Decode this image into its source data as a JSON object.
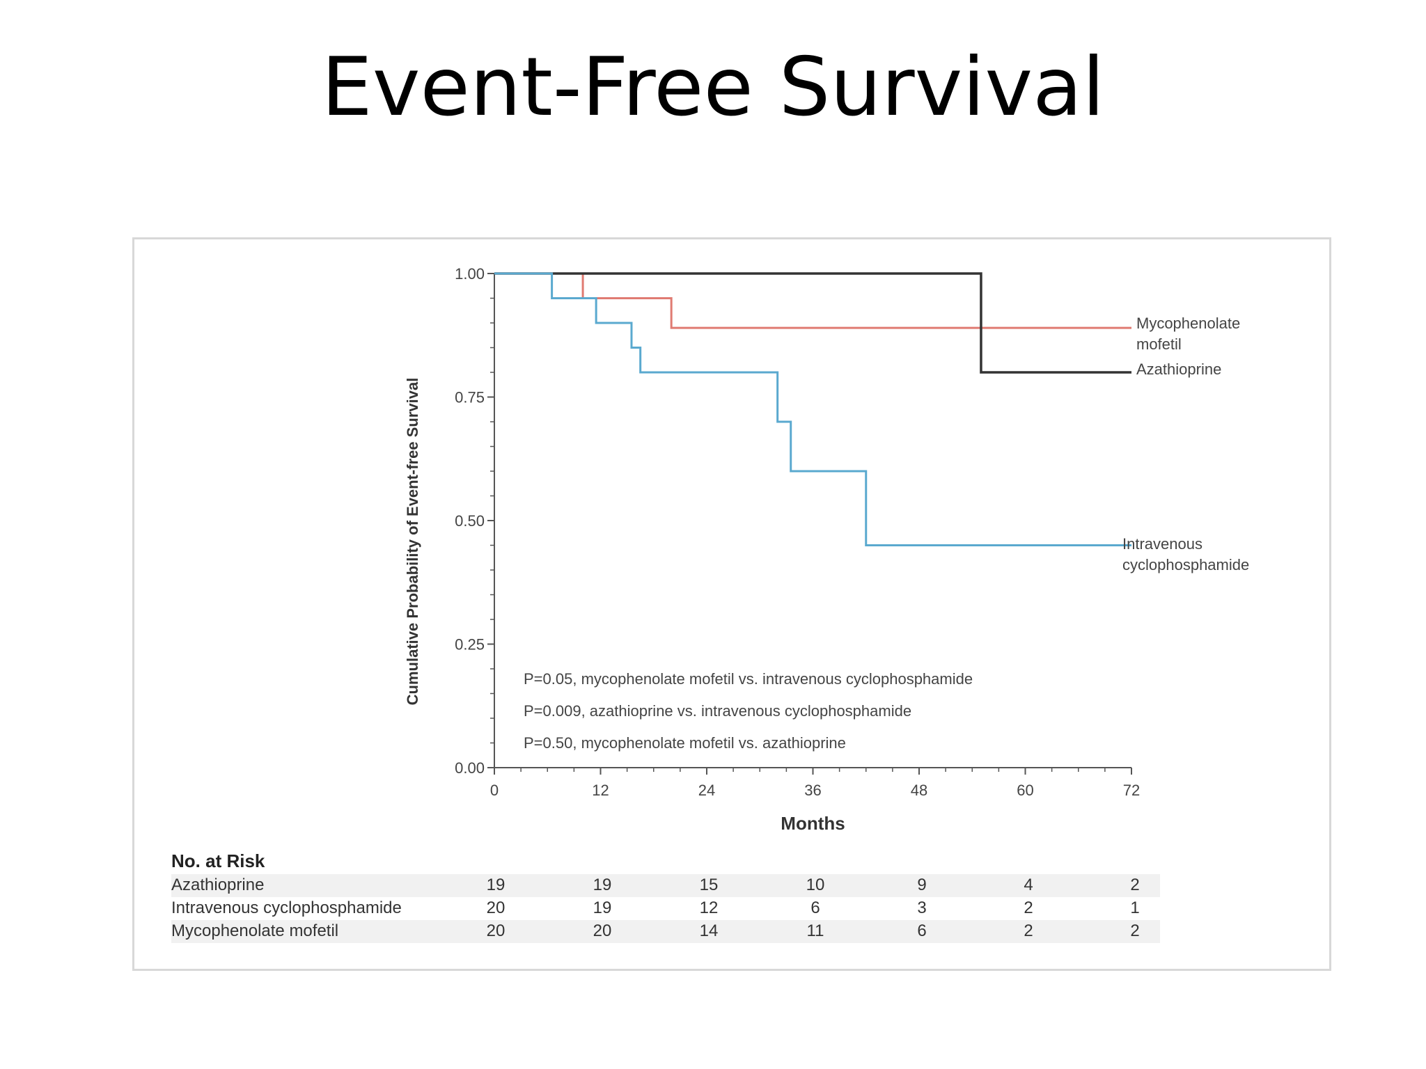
{
  "slide": {
    "title": "Event-Free Survival"
  },
  "colors": {
    "azathioprine": "#333333",
    "cyclophosphamide": "#5aa9cf",
    "mycophenolate": "#e07b72",
    "axis": "#555555",
    "frame": "#d8d8d8"
  },
  "chart_data": {
    "type": "line",
    "step": true,
    "title": "",
    "xlabel": "Months",
    "ylabel": "Cumulative Probability of Event-free Survival",
    "xlim": [
      0,
      72
    ],
    "ylim": [
      0,
      1
    ],
    "x_ticks": [
      "0",
      "12",
      "24",
      "36",
      "48",
      "60",
      "72"
    ],
    "y_ticks": [
      "0.00",
      "0.25",
      "0.50",
      "0.75",
      "1.00"
    ],
    "grid": false,
    "series": [
      {
        "name": "Mycophenolate mofetil",
        "label_lines": [
          "Mycophenolate",
          "mofetil"
        ],
        "color": "#e07b72",
        "x": [
          0,
          10,
          20,
          72
        ],
        "y": [
          1.0,
          0.95,
          0.89,
          0.89
        ]
      },
      {
        "name": "Azathioprine",
        "label_lines": [
          "Azathioprine"
        ],
        "color": "#333333",
        "x": [
          0,
          55,
          72
        ],
        "y": [
          1.0,
          0.8,
          0.8
        ]
      },
      {
        "name": "Intravenous cyclophosphamide",
        "label_lines": [
          "Intravenous",
          "cyclophosphamide"
        ],
        "color": "#5aa9cf",
        "x": [
          0,
          6.5,
          11.5,
          15.5,
          16.5,
          32,
          33.5,
          42,
          72
        ],
        "y": [
          1.0,
          0.95,
          0.9,
          0.85,
          0.8,
          0.7,
          0.6,
          0.45,
          0.45
        ]
      }
    ],
    "annotations": [
      "P=0.05, mycophenolate mofetil vs. intravenous cyclophosphamide",
      "P=0.009, azathioprine vs. intravenous cyclophosphamide",
      "P=0.50, mycophenolate mofetil vs. azathioprine"
    ]
  },
  "risk_table": {
    "heading": "No. at Risk",
    "rows": [
      {
        "label": "Azathioprine",
        "values": [
          "19",
          "19",
          "15",
          "10",
          "9",
          "4",
          "2"
        ]
      },
      {
        "label": "Intravenous cyclophosphamide",
        "values": [
          "20",
          "19",
          "12",
          "6",
          "3",
          "2",
          "1"
        ]
      },
      {
        "label": "Mycophenolate mofetil",
        "values": [
          "20",
          "20",
          "14",
          "11",
          "6",
          "2",
          "2"
        ]
      }
    ]
  }
}
